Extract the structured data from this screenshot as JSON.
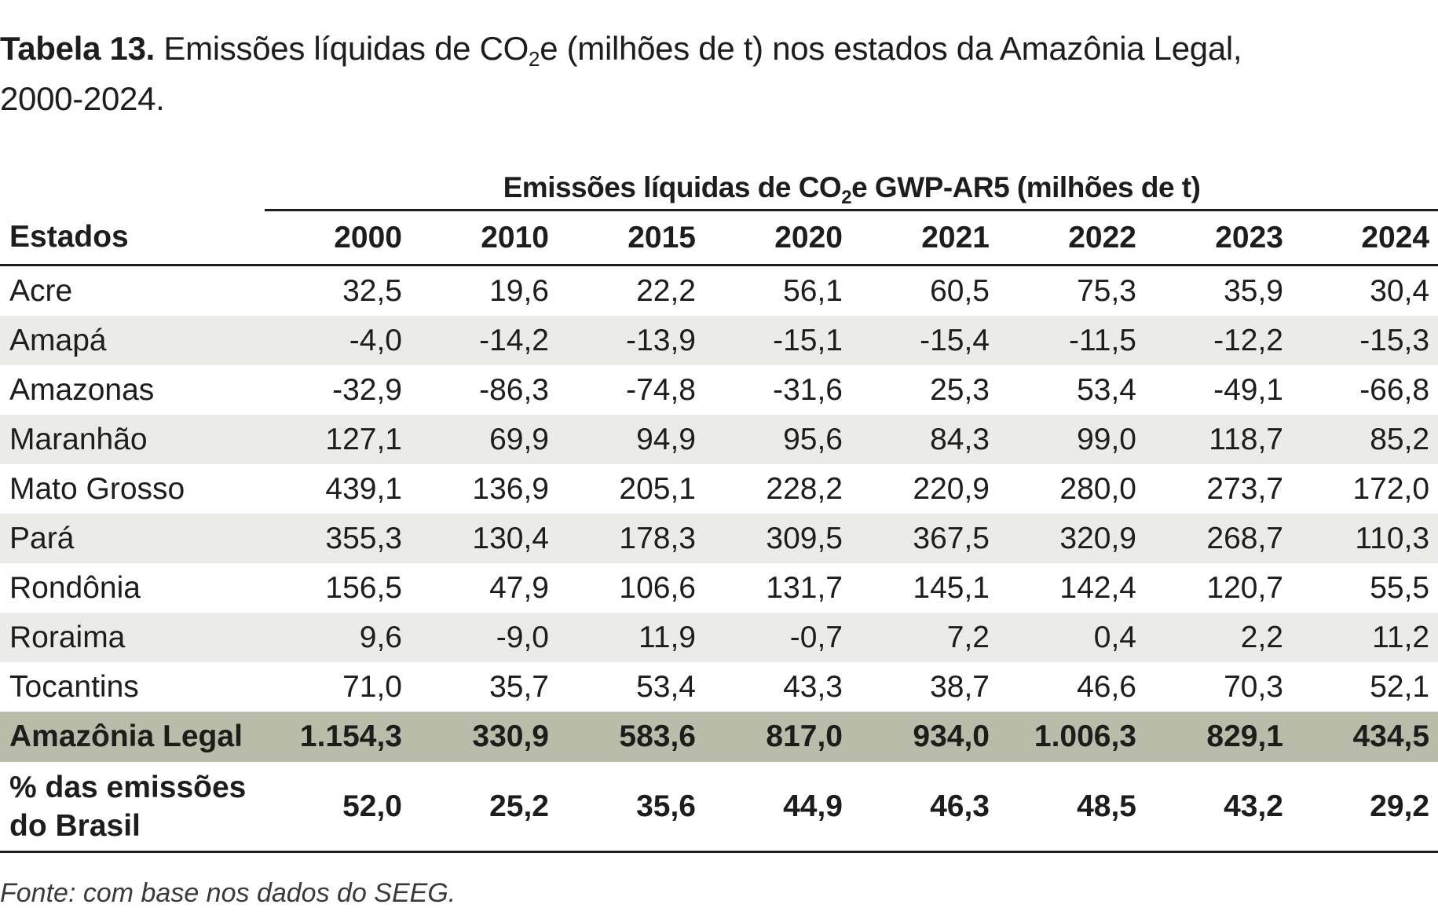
{
  "caption": {
    "label": "Tabela 13.",
    "text_before_sub": "Emissões líquidas de CO",
    "sub": "2",
    "text_after_sub": "e (milhões de t) nos estados da Amazônia Legal,",
    "line2": "2000-2024."
  },
  "table": {
    "group_header": {
      "before_sub": "Emissões líquidas de CO",
      "sub": "2",
      "after_sub": "e GWP-AR5 (milhões de t)"
    },
    "state_header": "Estados",
    "years": [
      "2000",
      "2010",
      "2015",
      "2020",
      "2021",
      "2022",
      "2023",
      "2024"
    ],
    "rows": [
      {
        "state": "Acre",
        "values": [
          "32,5",
          "19,6",
          "22,2",
          "56,1",
          "60,5",
          "75,3",
          "35,9",
          "30,4"
        ]
      },
      {
        "state": "Amapá",
        "values": [
          "-4,0",
          "-14,2",
          "-13,9",
          "-15,1",
          "-15,4",
          "-11,5",
          "-12,2",
          "-15,3"
        ]
      },
      {
        "state": "Amazonas",
        "values": [
          "-32,9",
          "-86,3",
          "-74,8",
          "-31,6",
          "25,3",
          "53,4",
          "-49,1",
          "-66,8"
        ]
      },
      {
        "state": "Maranhão",
        "values": [
          "127,1",
          "69,9",
          "94,9",
          "95,6",
          "84,3",
          "99,0",
          "118,7",
          "85,2"
        ]
      },
      {
        "state": "Mato Grosso",
        "values": [
          "439,1",
          "136,9",
          "205,1",
          "228,2",
          "220,9",
          "280,0",
          "273,7",
          "172,0"
        ]
      },
      {
        "state": "Pará",
        "values": [
          "355,3",
          "130,4",
          "178,3",
          "309,5",
          "367,5",
          "320,9",
          "268,7",
          "110,3"
        ]
      },
      {
        "state": "Rondônia",
        "values": [
          "156,5",
          "47,9",
          "106,6",
          "131,7",
          "145,1",
          "142,4",
          "120,7",
          "55,5"
        ]
      },
      {
        "state": "Roraima",
        "values": [
          "9,6",
          "-9,0",
          "11,9",
          "-0,7",
          "7,2",
          "0,4",
          "2,2",
          "11,2"
        ]
      },
      {
        "state": "Tocantins",
        "values": [
          "71,0",
          "35,7",
          "53,4",
          "43,3",
          "38,7",
          "46,6",
          "70,3",
          "52,1"
        ]
      }
    ],
    "total": {
      "state": "Amazônia Legal",
      "values": [
        "1.154,3",
        "330,9",
        "583,6",
        "817,0",
        "934,0",
        "1.006,3",
        "829,1",
        "434,5"
      ]
    },
    "share": {
      "label_line1": "% das emissões",
      "label_line2": "do Brasil",
      "values": [
        "52,0",
        "25,2",
        "35,6",
        "44,9",
        "46,3",
        "48,5",
        "43,2",
        "29,2"
      ]
    }
  },
  "source": "Fonte: com base nos dados do SEEG.",
  "colors": {
    "text": "#1d1d1b",
    "row_shade": "#ebebe9",
    "total_row": "#b9bca9"
  }
}
